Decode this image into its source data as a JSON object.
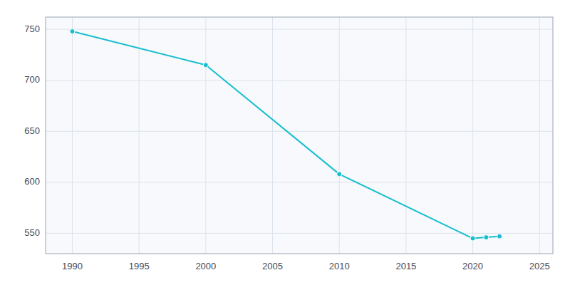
{
  "chart_data": {
    "type": "line",
    "x": [
      1990,
      2000,
      2010,
      2020,
      2021,
      2022
    ],
    "values": [
      748,
      715,
      608,
      545,
      546,
      547
    ],
    "color": "#17BECF",
    "marker": "circle",
    "xlim": [
      1988,
      2026
    ],
    "ylim": [
      530,
      762
    ],
    "xticks": [
      1990,
      1995,
      2000,
      2005,
      2010,
      2015,
      2020,
      2025
    ],
    "yticks": [
      550,
      600,
      650,
      700,
      750
    ],
    "grid": true
  }
}
